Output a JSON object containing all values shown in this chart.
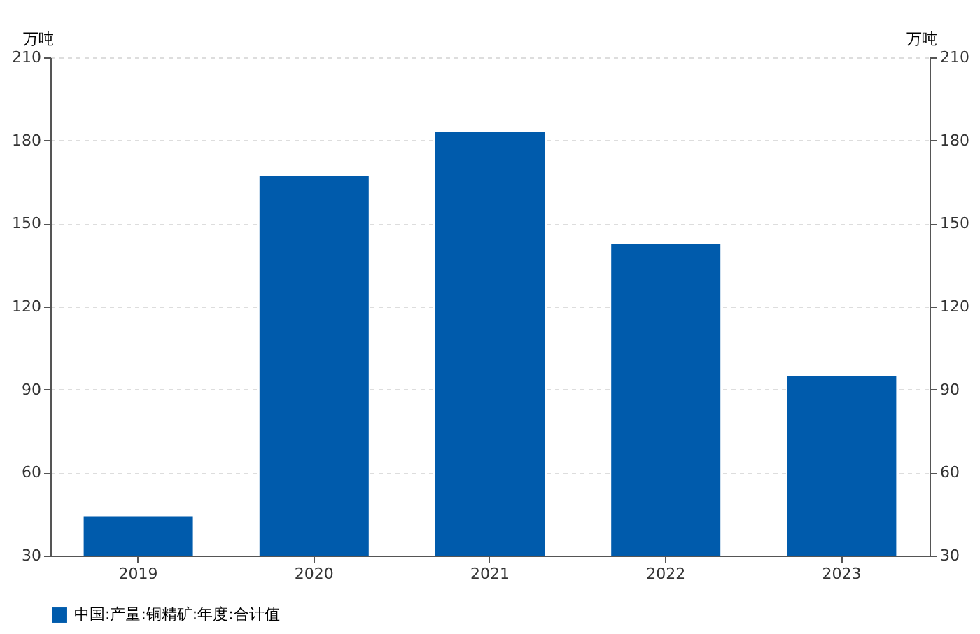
{
  "chart_data": {
    "type": "bar",
    "ylabel": "万吨",
    "y2label": "万吨",
    "categories": [
      "2019",
      "2020",
      "2021",
      "2022",
      "2023"
    ],
    "series": [
      {
        "name": "中国:产量:铜精矿:年度:合计值",
        "color": "#005bac",
        "values": [
          44,
          167,
          183,
          142.5,
          95
        ]
      }
    ],
    "ylim": [
      30,
      210
    ],
    "yticks": [
      30,
      60,
      90,
      120,
      150,
      180,
      210
    ],
    "y2lim": [
      30,
      210
    ],
    "y2ticks": [
      30,
      60,
      90,
      120,
      150,
      180,
      210
    ],
    "grid": "y",
    "legend": "bottom"
  }
}
